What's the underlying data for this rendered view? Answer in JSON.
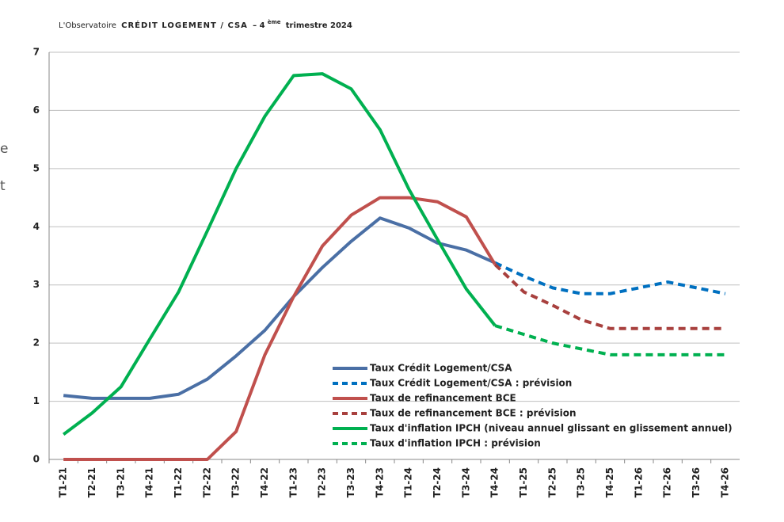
{
  "chart_data": {
    "type": "line",
    "title_parts": [
      "L'Observatoire",
      "CRÉDIT LOGEMENT / CSA",
      "– 4",
      "ème",
      "trimestre 2024"
    ],
    "side_fragments": [
      "e",
      "t"
    ],
    "categories": [
      "T1-21",
      "T2-21",
      "T3-21",
      "T4-21",
      "T1-22",
      "T2-22",
      "T3-22",
      "T4-22",
      "T1-23",
      "T2-23",
      "T3-23",
      "T4-23",
      "T1-24",
      "T2-24",
      "T3-24",
      "T4-24",
      "T1-25",
      "T2-25",
      "T3-25",
      "T4-25",
      "T1-26",
      "T2-26",
      "T3-26",
      "T4-26"
    ],
    "ylim": [
      0,
      7
    ],
    "yticks": [
      0,
      1,
      2,
      3,
      4,
      5,
      6,
      7
    ],
    "grid": true,
    "series": [
      {
        "name": "Taux Crédit Logement/CSA",
        "color": "#4a6fa5",
        "dash": false,
        "values": [
          1.1,
          1.05,
          1.05,
          1.05,
          1.12,
          1.38,
          1.78,
          2.22,
          2.8,
          3.3,
          3.75,
          4.15,
          3.98,
          3.72,
          3.6,
          3.38,
          null,
          null,
          null,
          null,
          null,
          null,
          null,
          null
        ]
      },
      {
        "name": "Taux Crédit Logement/CSA : prévision",
        "color": "#0070c0",
        "dash": true,
        "values": [
          null,
          null,
          null,
          null,
          null,
          null,
          null,
          null,
          null,
          null,
          null,
          null,
          null,
          null,
          null,
          3.38,
          3.15,
          2.95,
          2.85,
          2.85,
          2.95,
          3.05,
          2.95,
          2.85
        ]
      },
      {
        "name": "Taux de refinancement BCE",
        "color": "#c0504d",
        "dash": false,
        "values": [
          0,
          0,
          0,
          0,
          0,
          0,
          0.48,
          1.8,
          2.8,
          3.67,
          4.2,
          4.5,
          4.5,
          4.43,
          4.17,
          3.35,
          null,
          null,
          null,
          null,
          null,
          null,
          null,
          null
        ]
      },
      {
        "name": "Taux de refinancement BCE : prévision",
        "color": "#a8403e",
        "dash": true,
        "values": [
          null,
          null,
          null,
          null,
          null,
          null,
          null,
          null,
          null,
          null,
          null,
          null,
          null,
          null,
          null,
          3.35,
          2.88,
          2.65,
          2.4,
          2.25,
          2.25,
          2.25,
          2.25,
          2.25
        ]
      },
      {
        "name": "Taux d'inflation IPCH (niveau annuel glissant en glissement annuel)",
        "color": "#00b050",
        "dash": false,
        "values": [
          0.43,
          0.8,
          1.25,
          2.07,
          2.88,
          3.93,
          5.0,
          5.9,
          6.6,
          6.63,
          6.37,
          5.67,
          4.65,
          3.78,
          2.93,
          2.3,
          null,
          null,
          null,
          null,
          null,
          null,
          null,
          null
        ]
      },
      {
        "name": "Taux d'inflation IPCH : prévision",
        "color": "#00b050",
        "dash": true,
        "values": [
          null,
          null,
          null,
          null,
          null,
          null,
          null,
          null,
          null,
          null,
          null,
          null,
          null,
          null,
          null,
          2.3,
          2.15,
          2.0,
          1.9,
          1.8,
          1.8,
          1.8,
          1.8,
          1.8
        ]
      }
    ]
  }
}
